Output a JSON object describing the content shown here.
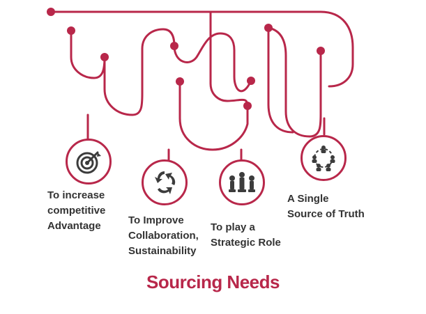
{
  "title": "Sourcing Needs",
  "colors": {
    "accent": "#b8274a",
    "wire": "#c9cfd6",
    "icon": "#3c3c3c",
    "text": "#333333"
  },
  "needs": [
    {
      "label": "To increase\ncompetitive\nAdvantage",
      "icon": "target-icon"
    },
    {
      "label": "To Improve\nCollaboration,\nSustainability",
      "icon": "recycle-icon"
    },
    {
      "label": "To play a\nStrategic Role",
      "icon": "chess-pieces-icon"
    },
    {
      "label": "A Single\nSource of Truth",
      "icon": "team-network-icon"
    }
  ]
}
